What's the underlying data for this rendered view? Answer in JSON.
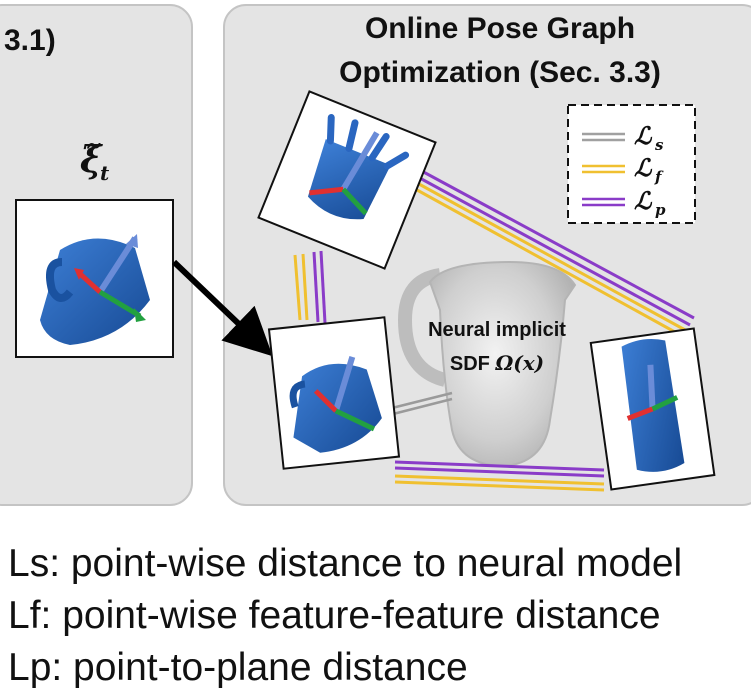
{
  "left_panel": {
    "section_fragment": "3.1)",
    "pose_symbol": "ξ̃",
    "pose_subscript": "t"
  },
  "right_panel": {
    "title_line1": "Online Pose Graph",
    "title_line2": "Optimization (Sec. 3.3)"
  },
  "center_label": {
    "line1": "Neural implicit",
    "line2_text": "SDF ",
    "line2_math": "Ω(x)"
  },
  "legend": [
    {
      "symbol": "ℒ",
      "subscript": "s",
      "color": "#a0a0a0"
    },
    {
      "symbol": "ℒ",
      "subscript": "f",
      "color": "#f0c030"
    },
    {
      "symbol": "ℒ",
      "subscript": "p",
      "color": "#8a3cc8"
    }
  ],
  "captions": [
    "Ls: point-wise distance to neural model",
    "Lf: point-wise feature-feature distance",
    "Lp: point-to-plane distance"
  ],
  "colors": {
    "panel_bg": "#e4e4e4",
    "panel_border": "#bdbdbd",
    "object_blue": "#1f5fb4",
    "axis_red": "#e03030",
    "axis_green": "#22a040",
    "axis_blue": "#6a8cd8"
  }
}
